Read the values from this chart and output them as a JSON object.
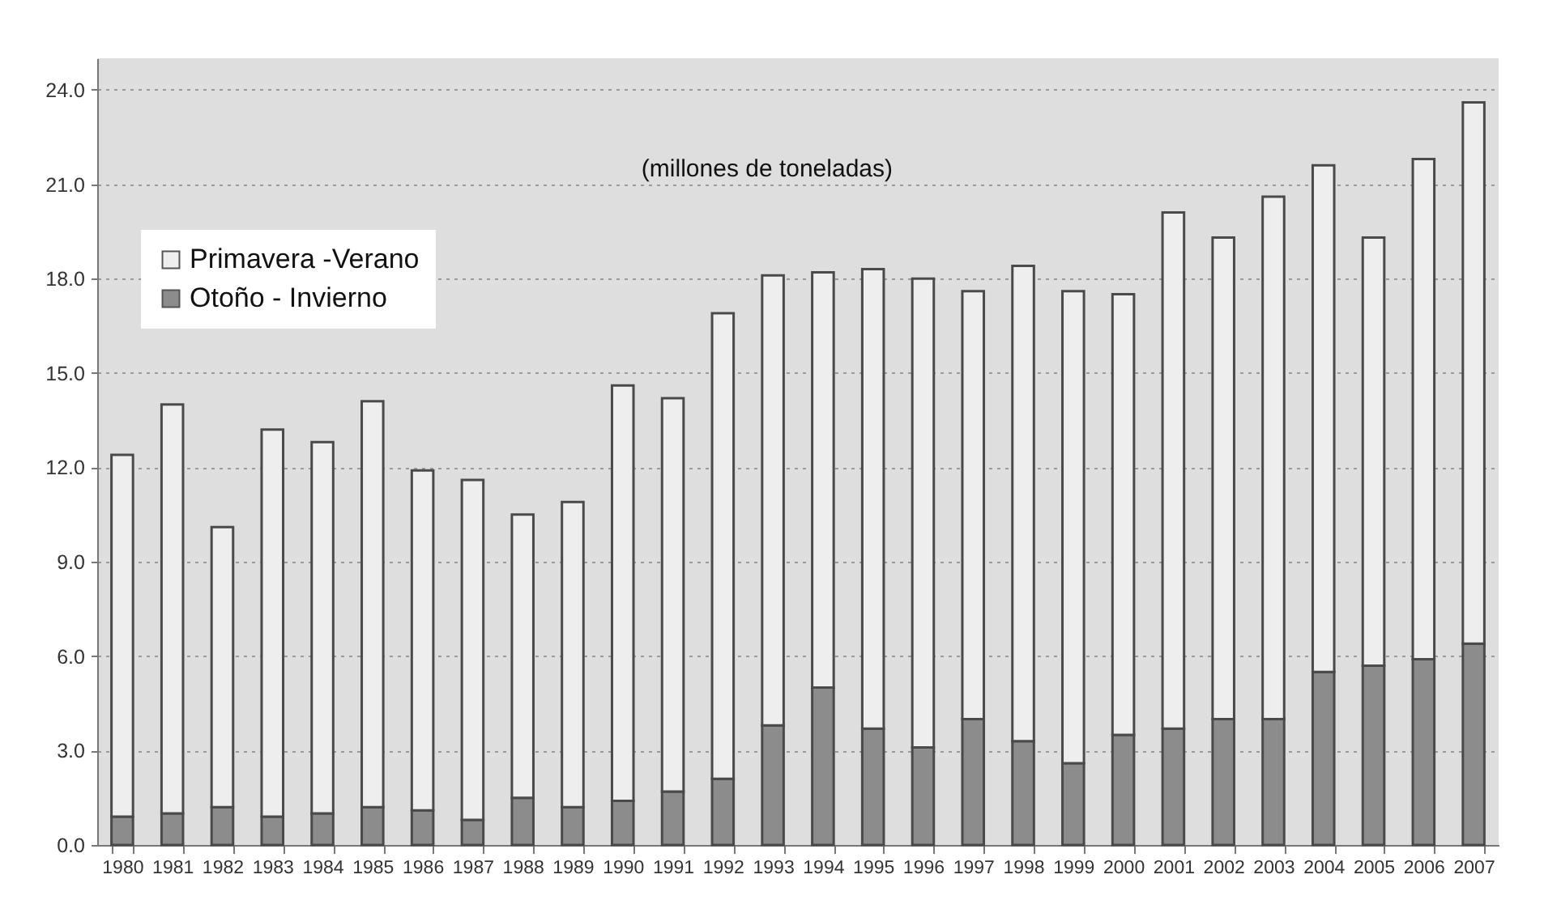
{
  "chart_data": {
    "type": "bar",
    "stacked": true,
    "annotations": [
      "(millones de toneladas)"
    ],
    "categories": [
      "1980",
      "1981",
      "1982",
      "1983",
      "1984",
      "1985",
      "1986",
      "1987",
      "1988",
      "1989",
      "1990",
      "1991",
      "1992",
      "1993",
      "1994",
      "1995",
      "1996",
      "1997",
      "1998",
      "1999",
      "2000",
      "2001",
      "2002",
      "2003",
      "2004",
      "2005",
      "2006",
      "2007"
    ],
    "series": [
      {
        "name": "Otoño - Invierno",
        "color": "#8c8c8c",
        "values": [
          0.9,
          1.0,
          1.2,
          0.9,
          1.0,
          1.2,
          1.1,
          0.8,
          1.5,
          1.2,
          1.4,
          1.7,
          2.1,
          3.8,
          5.0,
          3.7,
          3.1,
          4.0,
          3.3,
          2.6,
          3.5,
          3.7,
          4.0,
          4.0,
          5.5,
          5.7,
          5.9,
          6.4
        ]
      },
      {
        "name": "Primavera -Verano",
        "color": "#eeeeee",
        "values": [
          11.5,
          13.0,
          8.9,
          12.3,
          11.8,
          12.9,
          10.8,
          10.8,
          9.0,
          9.7,
          13.2,
          12.5,
          14.8,
          14.3,
          13.2,
          14.6,
          14.9,
          13.6,
          15.1,
          15.0,
          14.0,
          16.4,
          15.3,
          16.6,
          16.1,
          13.6,
          15.9,
          17.2
        ]
      }
    ],
    "ylim": [
      0,
      25
    ],
    "yticks": [
      {
        "value": 0,
        "label": "0.0"
      },
      {
        "value": 3,
        "label": "3.0"
      },
      {
        "value": 6,
        "label": "6.0"
      },
      {
        "value": 9,
        "label": "9.0"
      },
      {
        "value": 12,
        "label": "12.0"
      },
      {
        "value": 15,
        "label": "15.0"
      },
      {
        "value": 18,
        "label": "18.0"
      },
      {
        "value": 21,
        "label": "21.0"
      },
      {
        "value": 24,
        "label": "24.0"
      }
    ],
    "grid": "y",
    "legend": "top left"
  }
}
